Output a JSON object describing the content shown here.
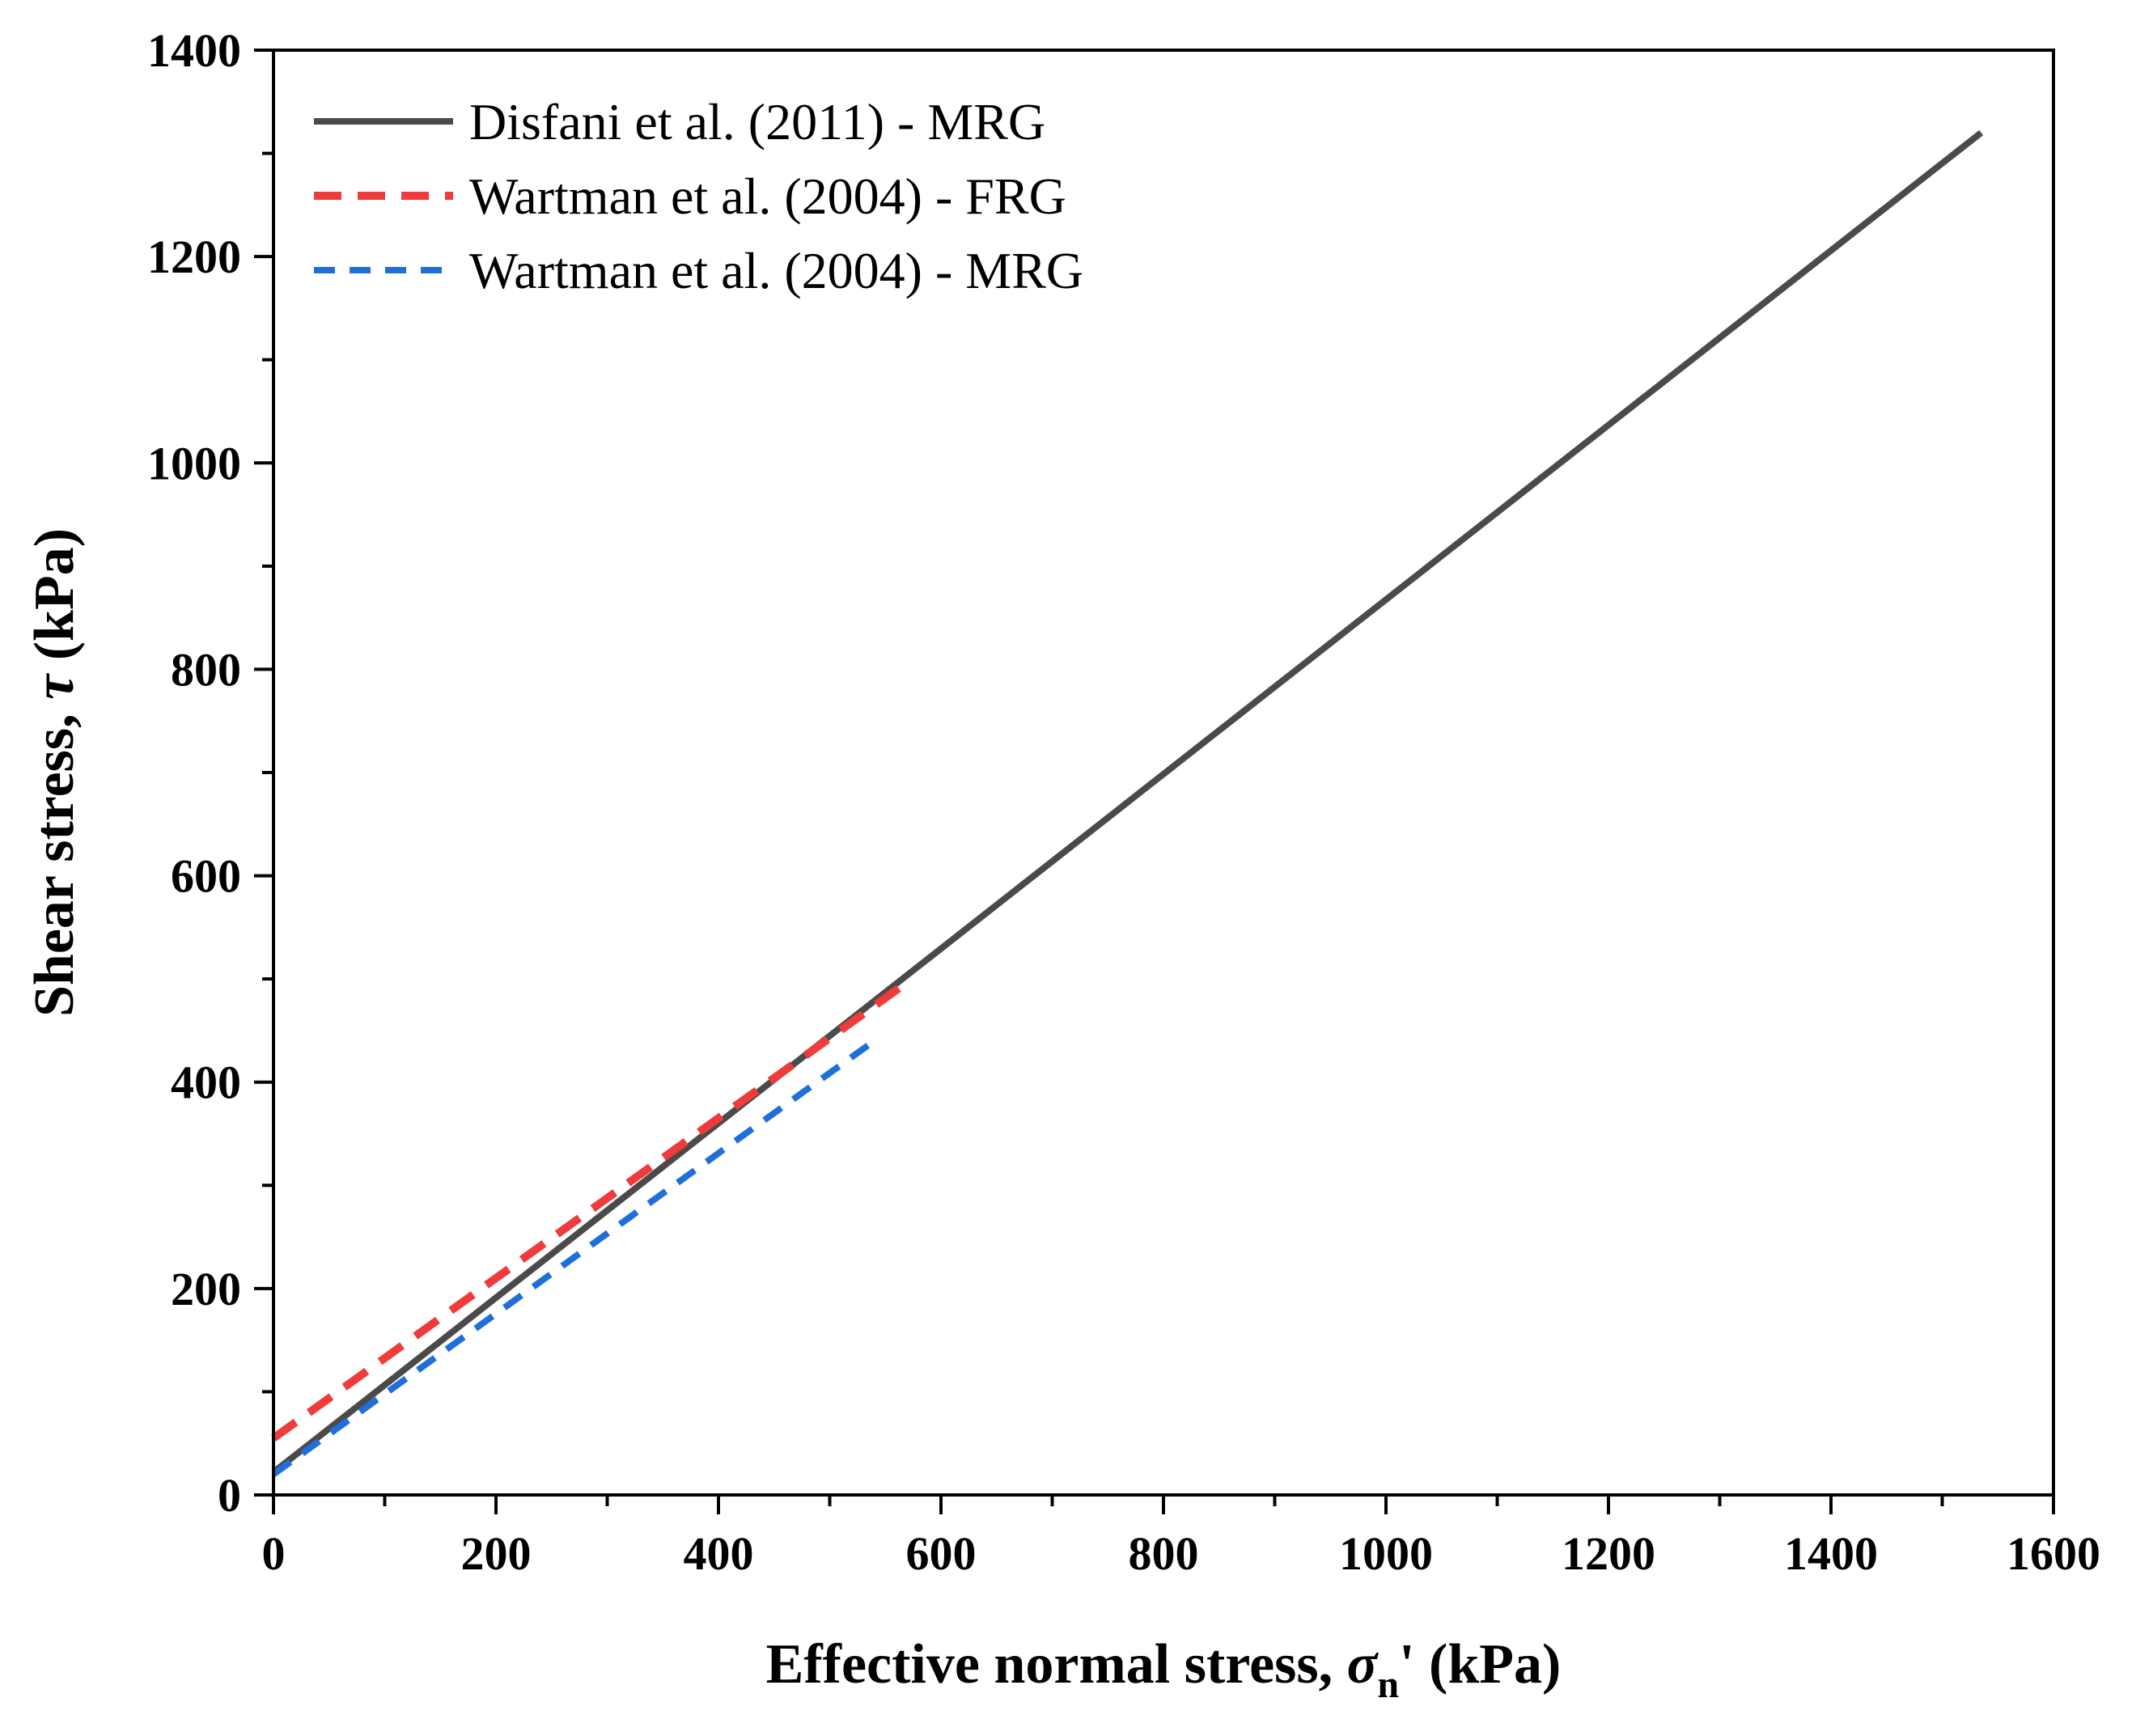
{
  "chart_data": {
    "type": "line",
    "title": "",
    "xlabel": {
      "prefix": "Effective normal stress, ",
      "symbol": "σ",
      "subscript": "n",
      "suffix": "' (kPa)"
    },
    "ylabel": {
      "prefix": "Shear stress, ",
      "symbol": "τ",
      "suffix": " (kPa)"
    },
    "xlim": [
      0,
      1600
    ],
    "ylim": [
      0,
      1400
    ],
    "xticks": [
      0,
      200,
      400,
      600,
      800,
      1000,
      1200,
      1400,
      1600
    ],
    "yticks": [
      0,
      200,
      400,
      600,
      800,
      1000,
      1200,
      1400
    ],
    "xtick_labels": [
      "0",
      "200",
      "400",
      "600",
      "800",
      "1000",
      "1200",
      "1400",
      "1600"
    ],
    "ytick_labels": [
      "0",
      "200",
      "400",
      "600",
      "800",
      "1000",
      "1200",
      "1400"
    ],
    "x_minor_step": 100,
    "y_minor_step": 100,
    "grid": false,
    "legend_position": "top-left",
    "series": [
      {
        "name": "Disfani et al. (2011) - MRG",
        "color": "#4a4a4a",
        "style": "solid",
        "x": [
          0,
          1535
        ],
        "y": [
          22,
          1320
        ]
      },
      {
        "name": "Wartman et al. (2004) - FRG",
        "color": "#ef3b3b",
        "style": "dashed",
        "x": [
          0,
          570
        ],
        "y": [
          55,
          497
        ]
      },
      {
        "name": "Wartman et al. (2004) - MRG",
        "color": "#1e6fd9",
        "style": "dashed",
        "x": [
          0,
          540
        ],
        "y": [
          20,
          440
        ]
      }
    ]
  }
}
